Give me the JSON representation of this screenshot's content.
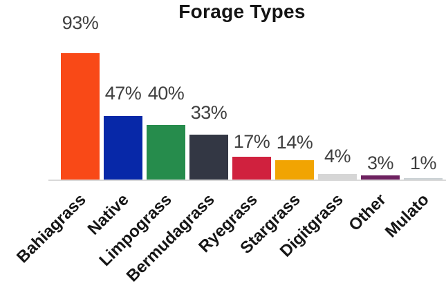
{
  "title": "Forage Types",
  "chart_data": {
    "type": "bar",
    "title": "Forage Types",
    "categories": [
      "Bahiagrass",
      "Native",
      "Limpograss",
      "Bermudagrass",
      "Ryegrass",
      "Stargrass",
      "Digitgrass",
      "Other",
      "Mulato"
    ],
    "values": [
      93,
      47,
      40,
      33,
      17,
      14,
      4,
      3,
      1
    ],
    "value_labels": [
      "93%",
      "47%",
      "40%",
      "33%",
      "17%",
      "14%",
      "4%",
      "3%",
      "1%"
    ],
    "bar_colors": [
      "#F94917",
      "#0728A8",
      "#268C4C",
      "#333744",
      "#D0213E",
      "#F1A402",
      "#D6D6D6",
      "#6E2160",
      "#C9D0D3"
    ],
    "xlabel": "",
    "ylabel": "",
    "ylim": [
      0,
      100
    ],
    "grid": false,
    "legend": null,
    "value_label_color": "#404040",
    "title_color": "#141414",
    "axis_line_color": "#D9D9D9",
    "category_label_rotation_deg": -45
  }
}
